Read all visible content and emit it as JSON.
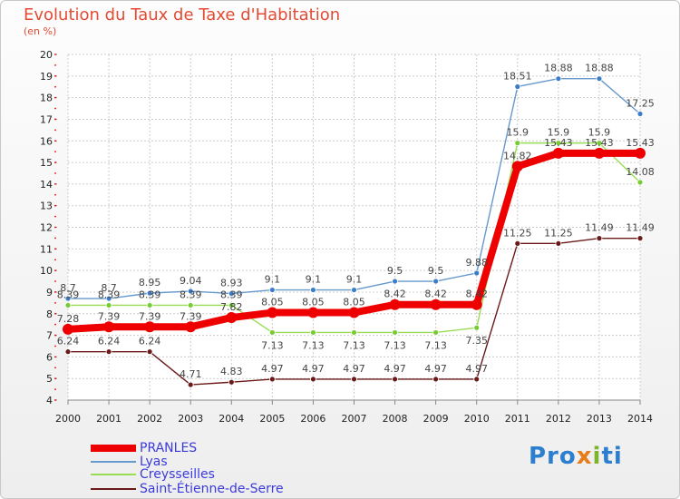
{
  "title": "Evolution du Taux de Taxe d'Habitation",
  "unit_label": "(en %)",
  "logo": {
    "p1": "Pro",
    "p2": "x",
    "p3": "i",
    "p4": "ti"
  },
  "colors": {
    "title": "#e34b34",
    "PRANLES": "#ee0000",
    "Lyas": "#6699cc",
    "Creysseilles": "#99dd55",
    "Saint-Étienne-de-Serre": "#6b1a1a",
    "grid": "#cccccc",
    "axis_tick_marker": "#ee0000"
  },
  "chart_data": {
    "type": "line",
    "title": "Evolution du Taux de Taxe d'Habitation",
    "ylabel": "(en %)",
    "xlabel": "",
    "ylim": [
      4,
      20
    ],
    "yticks": [
      4,
      5,
      6,
      7,
      8,
      9,
      10,
      11,
      12,
      13,
      14,
      15,
      16,
      17,
      18,
      19,
      20
    ],
    "categories": [
      "2000",
      "2001",
      "2002",
      "2003",
      "2004",
      "2005",
      "2006",
      "2007",
      "2008",
      "2009",
      "2010",
      "2011",
      "2012",
      "2013",
      "2014"
    ],
    "grid": true,
    "legend_position": "bottom-left",
    "series": [
      {
        "name": "PRANLES",
        "values": [
          7.28,
          7.39,
          7.39,
          7.39,
          7.82,
          8.05,
          8.05,
          8.05,
          8.42,
          8.42,
          8.42,
          14.82,
          15.43,
          15.43,
          15.43
        ],
        "labels": [
          "7.28",
          "7.39",
          "7.39",
          "7.39",
          "7.82",
          "8.05",
          "8.05",
          "8.05",
          "8.42",
          "8.42",
          "8.42",
          "14.82",
          "15.43",
          "15.43",
          "15.43"
        ]
      },
      {
        "name": "Lyas",
        "values": [
          8.7,
          8.7,
          8.95,
          9.04,
          8.93,
          9.1,
          9.1,
          9.1,
          9.5,
          9.5,
          9.88,
          18.51,
          18.88,
          18.88,
          17.25
        ],
        "labels": [
          "8.7",
          "8.7",
          "8.95",
          "9.04",
          "8.93",
          "9.1",
          "9.1",
          "9.1",
          "9.5",
          "9.5",
          "9.88",
          "18.51",
          "18.88",
          "18.88",
          "17.25"
        ]
      },
      {
        "name": "Creysseilles",
        "values": [
          8.39,
          8.39,
          8.39,
          8.39,
          8.39,
          7.13,
          7.13,
          7.13,
          7.13,
          7.13,
          7.35,
          15.9,
          15.9,
          15.9,
          14.08
        ],
        "labels": [
          "8.39",
          "8.39",
          "8.39",
          "8.39",
          "8.39",
          "7.13",
          "7.13",
          "7.13",
          "7.13",
          "7.13",
          "7.35",
          "15.9",
          "15.9",
          "15.9",
          "14.08"
        ]
      },
      {
        "name": "Saint-Étienne-de-Serre",
        "values": [
          6.24,
          6.24,
          6.24,
          4.71,
          4.83,
          4.97,
          4.97,
          4.97,
          4.97,
          4.97,
          4.97,
          11.25,
          11.25,
          11.49,
          11.49
        ],
        "labels": [
          "6.24",
          "6.24",
          "6.24",
          "4.71",
          "4.83",
          "4.97",
          "4.97",
          "4.97",
          "4.97",
          "4.97",
          "4.97",
          "11.25",
          "11.25",
          "11.49",
          "11.49"
        ]
      }
    ]
  }
}
